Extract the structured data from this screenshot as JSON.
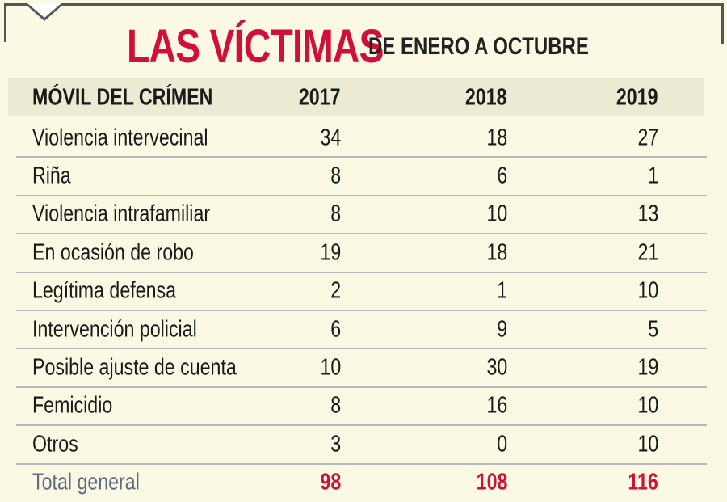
{
  "title": "LAS VÍCTIMAS",
  "subtitle": "DE ENERO A OCTUBRE",
  "accent_color": "#d0103a",
  "table": {
    "headers": [
      "MÓVIL DEL CRÍMEN",
      "2017",
      "2018",
      "2019"
    ],
    "rows": [
      [
        "Violencia intervecinal",
        "34",
        "18",
        "27"
      ],
      [
        "Riña",
        "8",
        "6",
        "1"
      ],
      [
        "Violencia intrafamiliar",
        "8",
        "10",
        "13"
      ],
      [
        "En ocasión de robo",
        "19",
        "18",
        "21"
      ],
      [
        "Legítima defensa",
        "2",
        "1",
        "10"
      ],
      [
        "Intervención policial",
        "6",
        "9",
        "5"
      ],
      [
        "Posible ajuste de cuenta",
        "10",
        "30",
        "19"
      ],
      [
        "Femicidio",
        "8",
        "16",
        "10"
      ],
      [
        "Otros",
        "3",
        "0",
        "10"
      ]
    ],
    "total": [
      "Total general",
      "98",
      "108",
      "116"
    ]
  }
}
